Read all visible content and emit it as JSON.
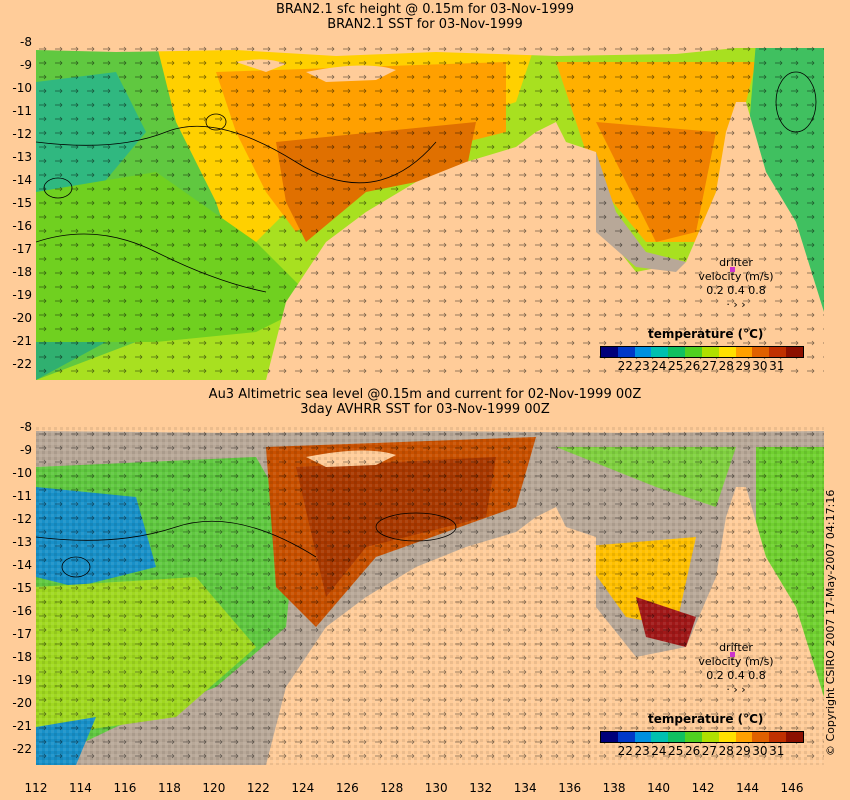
{
  "top": {
    "title_line1": "BRAN2.1 sfc height @ 0.15m for 03-Nov-1999",
    "title_line2": "BRAN2.1 SST for 03-Nov-1999"
  },
  "bottom": {
    "title_line1": "Au3 Altimetric sea level  @0.15m and current for 02-Nov-1999 00Z",
    "title_line2": "3day AVHRR SST for 03-Nov-1999 00Z"
  },
  "lat_labels": [
    "-8",
    "-9",
    "-10",
    "-11",
    "-12",
    "-13",
    "-14",
    "-15",
    "-16",
    "-17",
    "-18",
    "-19",
    "-20",
    "-21",
    "-22"
  ],
  "lon_labels": [
    "112",
    "114",
    "116",
    "118",
    "120",
    "122",
    "124",
    "126",
    "128",
    "130",
    "132",
    "134",
    "136",
    "138",
    "140",
    "142",
    "144",
    "146"
  ],
  "colorbar": {
    "title": "temperature (°C)",
    "ticks": [
      "22",
      "23",
      "24",
      "25",
      "26",
      "27",
      "28",
      "29",
      "30",
      "31"
    ],
    "colors": [
      "#00007a",
      "#0038c8",
      "#0090e0",
      "#00c0b0",
      "#10c060",
      "#50d020",
      "#b0e000",
      "#ffe000",
      "#ffa000",
      "#e06000",
      "#c03000",
      "#8c1000"
    ]
  },
  "drifter": {
    "title": "drifter",
    "subtitle": "velocity (m/s)",
    "scale": "0.2 0.4 0.8",
    "marker_color": "#cc33cc"
  },
  "copyright": "© Copyright CSIRO 2007   17-May-2007 04:17:16",
  "colors": {
    "land": "#ffcc99",
    "mask": "#b8a898"
  }
}
